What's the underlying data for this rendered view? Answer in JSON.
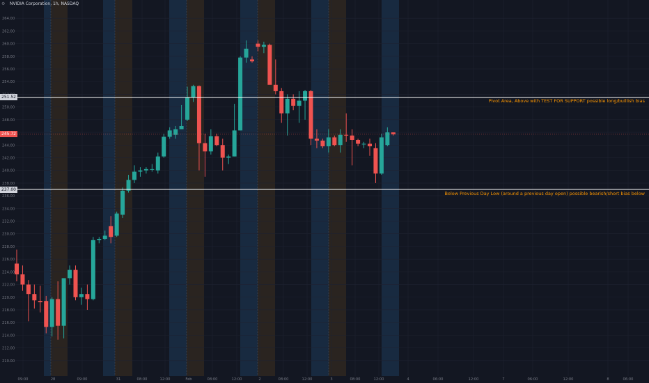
{
  "header": {
    "title": "NVIDIA Corporation, 1h, NASDAQ",
    "settings_icon": "gear-icon"
  },
  "colors": {
    "background": "#131722",
    "up": "#26a69a",
    "down": "#ef5350",
    "grid": "#1e2230",
    "axis_text": "#787b86",
    "session_blue": "#182a40",
    "session_orange": "#2a2420",
    "level_line": "#ffffff",
    "annotation": "#ff9800"
  },
  "annotations": {
    "upper": "Pivot Area, Above with TEST FOR SUPPORT possible long/buillish bias",
    "lower": "Below Previous Day Low (around a previous day open) possible bearish/short bias below"
  },
  "price_tags": {
    "pivot": "251.52",
    "current": "245.72",
    "prev_low": "237.00"
  },
  "chart_data": {
    "type": "candlestick",
    "title": "NVIDIA Corporation, 1h, NASDAQ",
    "ylim": [
      208,
      266
    ],
    "y_ticks": [
      "210.00",
      "212.00",
      "214.00",
      "216.00",
      "218.00",
      "220.00",
      "222.00",
      "224.00",
      "226.00",
      "228.00",
      "230.00",
      "232.00",
      "234.00",
      "236.00",
      "238.00",
      "240.00",
      "242.00",
      "244.00",
      "246.00",
      "248.00",
      "250.00",
      "252.00",
      "254.00",
      "256.00",
      "258.00",
      "260.00",
      "262.00",
      "264.00"
    ],
    "x_tick_labels": [
      "09:00",
      "28",
      "09:00",
      "31",
      "08:00",
      "12:00",
      "Feb",
      "08:00",
      "12:00",
      "2",
      "08:00",
      "12:00",
      "3",
      "08:00",
      "12:00",
      "4",
      "06:00",
      "12:00",
      "7",
      "06:00",
      "12:00",
      "8",
      "06:00"
    ],
    "levels": [
      {
        "price": 251.52,
        "label": "251.52"
      },
      {
        "price": 237.0,
        "label": "237.00"
      }
    ],
    "current_price": 245.72,
    "candles": [
      {
        "o": 225.3,
        "h": 227.5,
        "l": 222.5,
        "c": 223.6
      },
      {
        "o": 223.6,
        "h": 225.0,
        "l": 221.0,
        "c": 222.0
      },
      {
        "o": 222.0,
        "h": 222.7,
        "l": 216.2,
        "c": 220.5
      },
      {
        "o": 220.5,
        "h": 222.0,
        "l": 218.2,
        "c": 219.5
      },
      {
        "o": 219.4,
        "h": 221.8,
        "l": 217.6,
        "c": 219.2
      },
      {
        "o": 219.4,
        "h": 220.2,
        "l": 214.3,
        "c": 215.3
      },
      {
        "o": 215.3,
        "h": 220.0,
        "l": 213.8,
        "c": 219.7
      },
      {
        "o": 219.7,
        "h": 222.5,
        "l": 213.3,
        "c": 215.5
      },
      {
        "o": 215.5,
        "h": 223.0,
        "l": 213.5,
        "c": 223.0
      },
      {
        "o": 223.0,
        "h": 225.0,
        "l": 222.0,
        "c": 224.3
      },
      {
        "o": 224.3,
        "h": 225.0,
        "l": 219.5,
        "c": 220.0
      },
      {
        "o": 220.0,
        "h": 221.5,
        "l": 218.8,
        "c": 220.5
      },
      {
        "o": 220.5,
        "h": 222.0,
        "l": 218.0,
        "c": 219.7
      },
      {
        "o": 219.7,
        "h": 229.5,
        "l": 219.5,
        "c": 229.0
      },
      {
        "o": 229.0,
        "h": 229.5,
        "l": 228.5,
        "c": 229.2
      },
      {
        "o": 229.2,
        "h": 230.5,
        "l": 229.0,
        "c": 229.7
      },
      {
        "o": 231.2,
        "h": 232.8,
        "l": 228.5,
        "c": 229.5
      },
      {
        "o": 229.7,
        "h": 233.5,
        "l": 229.5,
        "c": 233.2
      },
      {
        "o": 233.0,
        "h": 237.3,
        "l": 232.5,
        "c": 236.8
      },
      {
        "o": 236.8,
        "h": 239.3,
        "l": 236.5,
        "c": 238.5
      },
      {
        "o": 238.5,
        "h": 240.8,
        "l": 238.0,
        "c": 239.8
      },
      {
        "o": 239.8,
        "h": 240.5,
        "l": 239.0,
        "c": 240.0
      },
      {
        "o": 240.0,
        "h": 240.5,
        "l": 239.5,
        "c": 240.2
      },
      {
        "o": 240.2,
        "h": 241.0,
        "l": 239.8,
        "c": 240.2
      },
      {
        "o": 240.0,
        "h": 242.8,
        "l": 239.5,
        "c": 242.2
      },
      {
        "o": 242.2,
        "h": 245.8,
        "l": 242.0,
        "c": 245.3
      },
      {
        "o": 245.3,
        "h": 246.8,
        "l": 245.0,
        "c": 246.3
      },
      {
        "o": 245.6,
        "h": 247.0,
        "l": 245.0,
        "c": 246.5
      },
      {
        "o": 246.5,
        "h": 250.3,
        "l": 246.5,
        "c": 247.0
      },
      {
        "o": 248.0,
        "h": 253.2,
        "l": 247.8,
        "c": 251.5
      },
      {
        "o": 251.5,
        "h": 253.5,
        "l": 250.8,
        "c": 253.3
      },
      {
        "o": 253.3,
        "h": 253.4,
        "l": 240.0,
        "c": 244.3
      },
      {
        "o": 244.3,
        "h": 245.8,
        "l": 239.0,
        "c": 243.0
      },
      {
        "o": 243.0,
        "h": 246.5,
        "l": 242.5,
        "c": 245.4
      },
      {
        "o": 245.4,
        "h": 245.8,
        "l": 243.8,
        "c": 244.0
      },
      {
        "o": 244.0,
        "h": 245.0,
        "l": 240.0,
        "c": 242.0
      },
      {
        "o": 242.0,
        "h": 242.5,
        "l": 241.0,
        "c": 242.2
      },
      {
        "o": 242.2,
        "h": 250.5,
        "l": 242.2,
        "c": 246.3
      },
      {
        "o": 246.3,
        "h": 258.0,
        "l": 246.3,
        "c": 257.8
      },
      {
        "o": 257.8,
        "h": 260.5,
        "l": 257.0,
        "c": 259.2
      },
      {
        "o": 257.5,
        "h": 258.0,
        "l": 257.0,
        "c": 257.2
      },
      {
        "o": 260.0,
        "h": 260.5,
        "l": 258.8,
        "c": 259.5
      },
      {
        "o": 259.5,
        "h": 260.3,
        "l": 258.5,
        "c": 259.8
      },
      {
        "o": 259.8,
        "h": 260.0,
        "l": 254.0,
        "c": 253.5
      },
      {
        "o": 253.5,
        "h": 257.5,
        "l": 252.0,
        "c": 252.5
      },
      {
        "o": 252.5,
        "h": 253.0,
        "l": 247.5,
        "c": 249.0
      },
      {
        "o": 249.0,
        "h": 252.0,
        "l": 245.5,
        "c": 251.3
      },
      {
        "o": 251.3,
        "h": 252.0,
        "l": 249.5,
        "c": 250.2
      },
      {
        "o": 250.2,
        "h": 252.5,
        "l": 247.5,
        "c": 251.0
      },
      {
        "o": 251.0,
        "h": 252.7,
        "l": 248.0,
        "c": 252.5
      },
      {
        "o": 252.5,
        "h": 252.7,
        "l": 244.0,
        "c": 245.0
      },
      {
        "o": 245.0,
        "h": 246.5,
        "l": 243.5,
        "c": 244.7
      },
      {
        "o": 244.7,
        "h": 245.0,
        "l": 243.5,
        "c": 243.8
      },
      {
        "o": 243.8,
        "h": 246.5,
        "l": 242.8,
        "c": 245.2
      },
      {
        "o": 245.2,
        "h": 245.5,
        "l": 243.8,
        "c": 244.0
      },
      {
        "o": 244.0,
        "h": 246.5,
        "l": 242.8,
        "c": 245.6
      },
      {
        "o": 245.6,
        "h": 249.0,
        "l": 244.5,
        "c": 245.5
      },
      {
        "o": 245.5,
        "h": 246.5,
        "l": 240.8,
        "c": 244.8
      },
      {
        "o": 244.8,
        "h": 245.0,
        "l": 243.8,
        "c": 244.2
      },
      {
        "o": 244.2,
        "h": 244.5,
        "l": 243.5,
        "c": 244.2
      },
      {
        "o": 244.2,
        "h": 245.0,
        "l": 242.3,
        "c": 243.8
      },
      {
        "o": 243.5,
        "h": 244.3,
        "l": 238.0,
        "c": 239.5
      },
      {
        "o": 239.5,
        "h": 245.8,
        "l": 239.3,
        "c": 245.2
      },
      {
        "o": 244.0,
        "h": 246.8,
        "l": 243.8,
        "c": 246.0
      },
      {
        "o": 246.0,
        "h": 246.0,
        "l": 245.5,
        "c": 245.7
      }
    ]
  }
}
